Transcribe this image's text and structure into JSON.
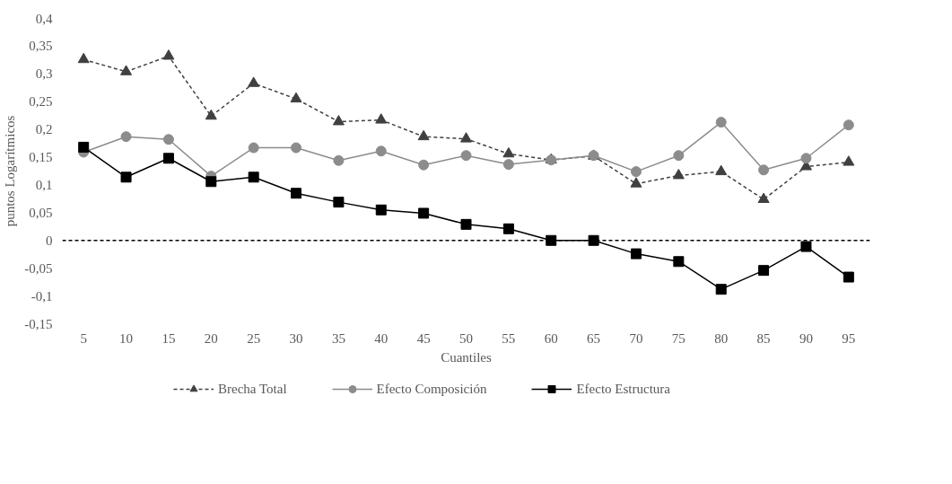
{
  "chart_data": {
    "type": "line",
    "xlabel": "Cuantiles",
    "ylabel": "puntos Logarítmicos",
    "categories": [
      "5",
      "10",
      "15",
      "20",
      "25",
      "30",
      "35",
      "40",
      "45",
      "50",
      "55",
      "60",
      "65",
      "70",
      "75",
      "80",
      "85",
      "90",
      "95"
    ],
    "series": [
      {
        "name": "Brecha Total",
        "color": "#404040",
        "marker": "triangle",
        "line_style": "dashed",
        "values": [
          0.326,
          0.304,
          0.332,
          0.224,
          0.283,
          0.255,
          0.214,
          0.217,
          0.187,
          0.183,
          0.156,
          0.145,
          0.152,
          0.102,
          0.117,
          0.124,
          0.074,
          0.133,
          0.141
        ]
      },
      {
        "name": "Efecto Composición",
        "color": "#8c8c8c",
        "marker": "circle",
        "line_style": "solid",
        "values": [
          0.159,
          0.187,
          0.182,
          0.116,
          0.167,
          0.167,
          0.144,
          0.161,
          0.136,
          0.153,
          0.137,
          0.145,
          0.153,
          0.124,
          0.153,
          0.213,
          0.127,
          0.148,
          0.208
        ]
      },
      {
        "name": "Efecto Estructura",
        "color": "#000000",
        "marker": "square",
        "line_style": "solid",
        "values": [
          0.168,
          0.114,
          0.148,
          0.106,
          0.114,
          0.085,
          0.069,
          0.055,
          0.049,
          0.029,
          0.021,
          0.0,
          0.0,
          -0.024,
          -0.038,
          -0.088,
          -0.054,
          -0.011,
          -0.066
        ]
      }
    ],
    "ylim": [
      -0.15,
      0.4
    ],
    "yticks": [
      {
        "value": -0.15,
        "label": "-0,15"
      },
      {
        "value": -0.1,
        "label": "-0,1"
      },
      {
        "value": -0.05,
        "label": "-0,05"
      },
      {
        "value": 0,
        "label": "0"
      },
      {
        "value": 0.05,
        "label": "0,05"
      },
      {
        "value": 0.1,
        "label": "0,1"
      },
      {
        "value": 0.15,
        "label": "0,15"
      },
      {
        "value": 0.2,
        "label": "0,2"
      },
      {
        "value": 0.25,
        "label": "0,25"
      },
      {
        "value": 0.3,
        "label": "0,3"
      },
      {
        "value": 0.35,
        "label": "0,35"
      },
      {
        "value": 0.4,
        "label": "0,4"
      }
    ],
    "ref_lines": [
      {
        "axis": "y",
        "value": 0,
        "label": null,
        "color": "#000000",
        "line_style": "dashed"
      }
    ],
    "grid": false,
    "legend": "bottom"
  }
}
